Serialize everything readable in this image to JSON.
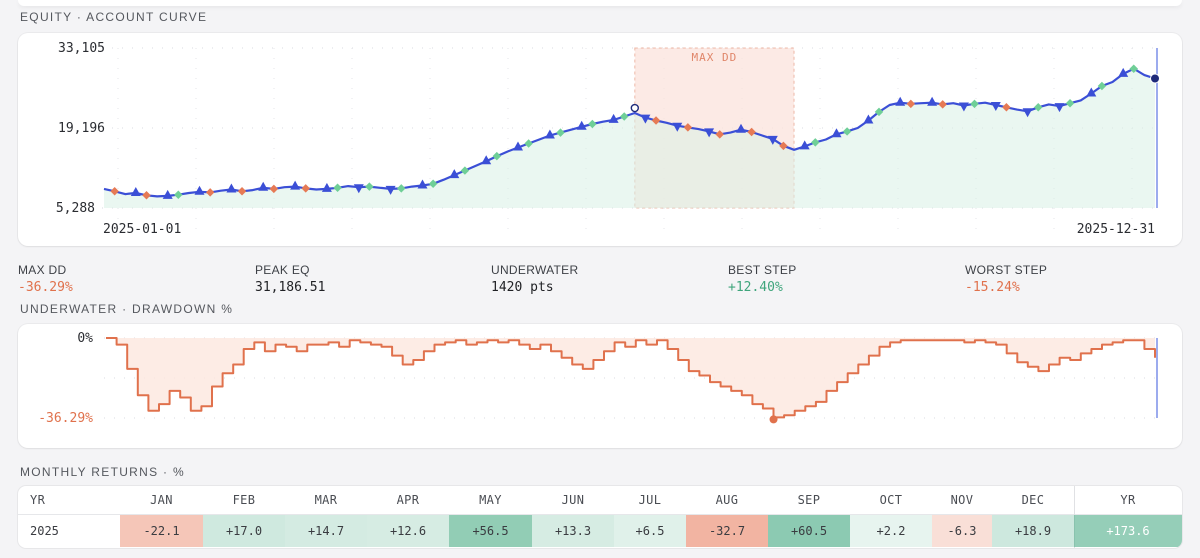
{
  "equity": {
    "section_label": "EQUITY · ACCOUNT CURVE",
    "y_ticks": [
      "33,105",
      "19,196",
      "5,288"
    ],
    "x_start": "2025-01-01",
    "x_end": "2025-12-31",
    "maxdd_label": "MAX DD",
    "colors": {
      "line": "#3b4fd6",
      "fill": "#d8f0e6",
      "dd_band": "#fbe3dc",
      "dd_text": "#e0866a",
      "buy": "#3b4fd6",
      "sell": "#e67a55",
      "green_marker": "#6fcf97"
    }
  },
  "chart_data": [
    {
      "type": "line",
      "title": "",
      "x_start": "2025-01-01",
      "x_end": "2025-12-31",
      "ylim": [
        5288,
        33105
      ],
      "y_ticks": [
        33105,
        19196,
        5288
      ],
      "series": [
        {
          "values": [
            8600,
            8200,
            7700,
            7900,
            7500,
            7300,
            7400,
            7600,
            7900,
            8100,
            8000,
            8300,
            8500,
            8200,
            8400,
            8800,
            8600,
            8900,
            9000,
            8700,
            8500,
            8600,
            8800,
            9100,
            8900,
            9000,
            8800,
            8600,
            8700,
            9000,
            9200,
            9500,
            10200,
            11000,
            11800,
            12600,
            13400,
            14300,
            15100,
            15800,
            16500,
            17200,
            17900,
            18400,
            18900,
            19400,
            19900,
            20300,
            20600,
            21200,
            21800,
            21000,
            20500,
            20100,
            19600,
            19300,
            19000,
            18600,
            18100,
            18400,
            18900,
            18500,
            17900,
            17300,
            16100,
            15400,
            16000,
            16700,
            17200,
            18100,
            18600,
            19200,
            20500,
            22000,
            23200,
            23600,
            23400,
            23500,
            23600,
            23300,
            23500,
            23100,
            23400,
            23600,
            23200,
            22800,
            22400,
            22100,
            22800,
            23300,
            23000,
            23500,
            24000,
            25200,
            26500,
            27200,
            28600,
            29500,
            28400,
            27800
          ]
        }
      ]
    },
    {
      "type": "area",
      "title": "",
      "ylim": [
        -36.29,
        0
      ],
      "y_ticks": [
        "0%",
        "-36.29%"
      ],
      "series": [
        {
          "values": [
            0,
            -3,
            -14,
            -26,
            -33,
            -30,
            -24,
            -27,
            -33,
            -31,
            -22,
            -16,
            -12,
            -5,
            -2,
            -6,
            -3,
            -4,
            -6,
            -3,
            -3,
            -2,
            -4,
            -1,
            -2,
            -3,
            -4,
            -8,
            -12,
            -10,
            -6,
            -3,
            -2,
            -1,
            -3,
            -2,
            -1,
            -2,
            -1,
            -3,
            -5,
            -3,
            -6,
            -9,
            -12,
            -14,
            -10,
            -6,
            -2,
            -4,
            -1,
            -3,
            -1,
            -5,
            -10,
            -15,
            -17,
            -20,
            -22,
            -24,
            -26,
            -30,
            -32,
            -36,
            -35,
            -33,
            -31,
            -29,
            -24,
            -20,
            -16,
            -12,
            -8,
            -4,
            -2,
            -1,
            -1,
            -1,
            -1,
            -1,
            -1,
            -2,
            -1,
            -2,
            -3,
            -7,
            -11,
            -13,
            -15,
            -12,
            -9,
            -10,
            -7,
            -5,
            -3,
            -2,
            -1,
            -1,
            -5,
            -9
          ]
        }
      ]
    }
  ],
  "stats": [
    {
      "key": "MAX DD",
      "value": "-36.29%",
      "tone": "neg"
    },
    {
      "key": "PEAK EQ",
      "value": "31,186.51",
      "tone": "plain"
    },
    {
      "key": "UNDERWATER",
      "value": "1420 pts",
      "tone": "plain"
    },
    {
      "key": "BEST STEP",
      "value": "+12.40%",
      "tone": "pos"
    },
    {
      "key": "WORST STEP",
      "value": "-15.24%",
      "tone": "neg"
    }
  ],
  "underwater": {
    "section_label": "UNDERWATER · DRAWDOWN %",
    "y_top": "0%",
    "y_bottom": "-36.29%",
    "colors": {
      "line": "#e0714c",
      "fill": "#fde7df"
    }
  },
  "monthly": {
    "section_label": "MONTHLY RETURNS · %",
    "headers": [
      "YR",
      "JAN",
      "FEB",
      "MAR",
      "APR",
      "MAY",
      "JUN",
      "JUL",
      "AUG",
      "SEP",
      "OCT",
      "NOV",
      "DEC",
      "YR"
    ],
    "year": "2025",
    "values": [
      "-22.1",
      "+17.0",
      "+14.7",
      "+12.6",
      "+56.5",
      "+13.3",
      "+6.5",
      "-32.7",
      "+60.5",
      "+2.2",
      "-6.3",
      "+18.9"
    ],
    "total": "+173.6"
  }
}
